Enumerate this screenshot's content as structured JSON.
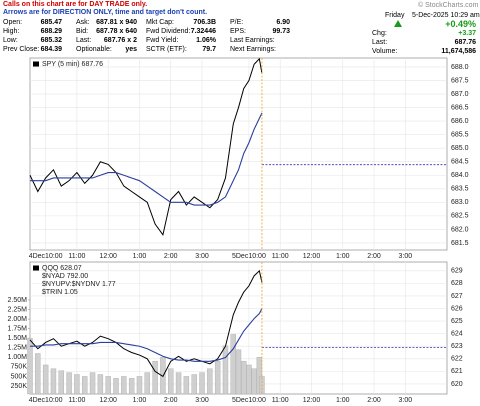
{
  "header": {
    "notice": [
      "Calls on this chart are for DAY TRADE only.",
      "Arrows are for DIRECTION ONLY, time and target don't count."
    ],
    "watermark": "© StockCharts.com",
    "quote_rows": [
      [
        [
          "Open:",
          "685.47"
        ],
        [
          "Ask:",
          "687.81 x 940"
        ],
        [
          "Mkt Cap:",
          "706.3B"
        ],
        [
          "P/E:",
          "6.90"
        ]
      ],
      [
        [
          "High:",
          "688.29"
        ],
        [
          "Bid:",
          "687.78 x 640"
        ],
        [
          "Fwd Dividend:",
          "7.32446"
        ],
        [
          "EPS:",
          "99.73"
        ]
      ],
      [
        [
          "Low:",
          "685.32"
        ],
        [
          "Last:",
          "687.76 x 2"
        ],
        [
          "Fwd Yield:",
          "1.06%"
        ],
        [
          "Last Earnings:"
        ]
      ],
      [
        [
          "Prev Close:",
          "684.39"
        ],
        [
          "Optionable:",
          "yes"
        ],
        [
          "SCTR (ETF):",
          "79.7"
        ],
        [
          "Next Earnings:"
        ]
      ]
    ],
    "day": "Friday",
    "date": "5-Dec-2025 10:29 am",
    "change_pct": "+0.49%",
    "stats": [
      [
        "Chg:",
        "+3.37"
      ],
      [
        "Last:",
        "687.76"
      ],
      [
        "Volume:",
        "11,674,586"
      ]
    ]
  },
  "chart_data": [
    {
      "type": "line",
      "x": [
        0,
        3,
        6,
        9,
        12,
        15,
        18,
        21,
        24,
        27,
        30,
        33,
        36,
        39,
        42,
        45,
        48,
        51,
        54,
        57,
        60,
        63,
        66,
        69,
        72,
        75,
        78,
        80,
        82,
        84,
        86,
        88,
        89
      ],
      "series": [
        {
          "name": "SPY (5 min) 687.76",
          "color": "#000000",
          "values": [
            684.0,
            683.4,
            683.9,
            684.2,
            683.6,
            683.8,
            684.1,
            683.7,
            684.0,
            684.5,
            684.4,
            684.1,
            683.6,
            683.4,
            683.2,
            683.0,
            682.2,
            681.8,
            683.1,
            683.4,
            682.9,
            683.2,
            683.0,
            682.8,
            683.1,
            683.9,
            685.9,
            686.5,
            687.2,
            687.5,
            688.1,
            688.3,
            687.76
          ]
        },
        {
          "color": "#2b3f9e",
          "values": [
            683.8,
            683.8,
            683.8,
            683.9,
            683.9,
            683.9,
            683.9,
            683.9,
            683.9,
            684.0,
            684.1,
            684.1,
            684.0,
            683.9,
            683.8,
            683.6,
            683.4,
            683.2,
            683.0,
            683.0,
            683.0,
            682.9,
            682.9,
            682.9,
            683.0,
            683.2,
            683.8,
            684.2,
            684.8,
            685.2,
            685.7,
            686.1,
            686.3
          ]
        }
      ],
      "reference_line": 684.39,
      "xlim": [
        0,
        160
      ],
      "xticks": [
        {
          "value": 6,
          "label": "4Dec10:00"
        },
        {
          "value": 18,
          "label": "11:00"
        },
        {
          "value": 30,
          "label": "12:00"
        },
        {
          "value": 42,
          "label": "1:00"
        },
        {
          "value": 54,
          "label": "2:00"
        },
        {
          "value": 66,
          "label": "3:00"
        },
        {
          "value": 84,
          "label": "5Dec10:00"
        },
        {
          "value": 96,
          "label": "11:00"
        },
        {
          "value": 108,
          "label": "12:00"
        },
        {
          "value": 120,
          "label": "1:00"
        },
        {
          "value": 132,
          "label": "2:00"
        },
        {
          "value": 144,
          "label": "3:00"
        }
      ],
      "ylim": [
        681.24,
        688.33
      ],
      "yticks": [
        681.5,
        {
          "value": 682,
          "label": "682.0"
        },
        682.5,
        {
          "value": 683,
          "label": "683.0"
        },
        683.5,
        {
          "value": 684,
          "label": "684.0"
        },
        684.5,
        {
          "value": 685,
          "label": "685.0"
        },
        685.5,
        {
          "value": 686,
          "label": "686.0"
        },
        686.5,
        {
          "value": 687,
          "label": "687.0"
        },
        687.5,
        {
          "value": 688,
          "label": "688.0"
        }
      ],
      "grid": true
    },
    {
      "type": "line",
      "x": [
        0,
        3,
        6,
        9,
        12,
        15,
        18,
        21,
        24,
        27,
        30,
        33,
        36,
        39,
        42,
        45,
        48,
        51,
        54,
        57,
        60,
        63,
        66,
        69,
        72,
        75,
        78,
        80,
        82,
        84,
        86,
        88,
        89
      ],
      "series": [
        {
          "type": "bar",
          "axis": "y2",
          "color": "#cfcfcf",
          "values": [
            1500000,
            1100000,
            800000,
            700000,
            650000,
            600000,
            550000,
            500000,
            600000,
            550000,
            500000,
            450000,
            500000,
            450000,
            500000,
            600000,
            900000,
            1000000,
            700000,
            600000,
            500000,
            550000,
            600000,
            700000,
            900000,
            1300000,
            1600000,
            1200000,
            900000,
            800000,
            700000,
            1000000,
            500000
          ]
        },
        {
          "name": "QQQ 628.07",
          "color": "#000000",
          "values": [
            623.5,
            622.8,
            623.3,
            623.6,
            623.0,
            623.2,
            623.4,
            623.0,
            623.3,
            623.8,
            623.6,
            623.3,
            622.8,
            622.5,
            622.3,
            622.0,
            621.0,
            620.6,
            621.8,
            622.2,
            621.8,
            622.0,
            621.8,
            621.6,
            622.0,
            623.0,
            625.5,
            626.5,
            627.3,
            627.8,
            628.6,
            629.0,
            628.07
          ]
        },
        {
          "color": "#2b3f9e",
          "values": [
            623.0,
            623.0,
            623.1,
            623.1,
            623.2,
            623.2,
            623.2,
            623.2,
            623.2,
            623.3,
            623.3,
            623.3,
            623.2,
            623.1,
            623.0,
            622.8,
            622.5,
            622.2,
            622.0,
            621.9,
            621.9,
            621.8,
            621.8,
            621.8,
            621.9,
            622.1,
            622.8,
            623.5,
            624.2,
            624.7,
            625.2,
            625.6,
            626.0
          ]
        }
      ],
      "annotations": [
        "$NYAD 792.00",
        "$NYUPV:$NYDNV 1.77",
        "$TRIN 1.05"
      ],
      "reference_line": 622.9,
      "xlim": [
        0,
        160
      ],
      "xticks": [
        {
          "value": 6,
          "label": "4Dec10:00"
        },
        {
          "value": 18,
          "label": "11:00"
        },
        {
          "value": 30,
          "label": "12:00"
        },
        {
          "value": 42,
          "label": "1:00"
        },
        {
          "value": 54,
          "label": "2:00"
        },
        {
          "value": 66,
          "label": "3:00"
        },
        {
          "value": 84,
          "label": "5Dec10:00"
        },
        {
          "value": 96,
          "label": "11:00"
        },
        {
          "value": 108,
          "label": "12:00"
        },
        {
          "value": 120,
          "label": "1:00"
        },
        {
          "value": 132,
          "label": "2:00"
        },
        {
          "value": 144,
          "label": "3:00"
        }
      ],
      "ylim": [
        619.2,
        629.7
      ],
      "yticks": [
        620,
        621,
        622,
        623,
        624,
        625,
        626,
        627,
        628,
        629
      ],
      "y2lim": [
        40000,
        3495000
      ],
      "y2ticks": [
        {
          "value": 250000,
          "label": "250K"
        },
        {
          "value": 500000,
          "label": "500K"
        },
        {
          "value": 750000,
          "label": "750K"
        },
        {
          "value": 1000000,
          "label": "1.00M"
        },
        {
          "value": 1250000,
          "label": "1.25M"
        },
        {
          "value": 1500000,
          "label": "1.50M"
        },
        {
          "value": 1750000,
          "label": "1.75M"
        },
        {
          "value": 2000000,
          "label": "2.00M"
        },
        {
          "value": 2250000,
          "label": "2.25M"
        },
        {
          "value": 2500000,
          "label": "2.50M"
        }
      ],
      "grid": true
    }
  ]
}
